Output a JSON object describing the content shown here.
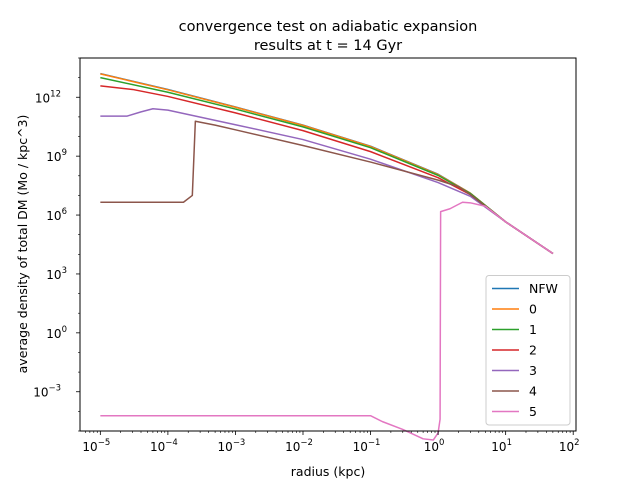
{
  "chart_data": {
    "type": "line",
    "title": "convergence test on adiabatic expansion",
    "subtitle": "results at t = 14 Gyr",
    "xlabel": "radius (kpc)",
    "ylabel": "average density of total DM (Mo / kpc^3)",
    "xscale": "log",
    "yscale": "log",
    "xlim": [
      5e-06,
      110
    ],
    "ylim": [
      1e-05,
      100000000000000.0
    ],
    "x_ticks": [
      {
        "value": 1e-05,
        "base": "10",
        "exp": "−5"
      },
      {
        "value": 0.0001,
        "base": "10",
        "exp": "−4"
      },
      {
        "value": 0.001,
        "base": "10",
        "exp": "−3"
      },
      {
        "value": 0.01,
        "base": "10",
        "exp": "−2"
      },
      {
        "value": 0.1,
        "base": "10",
        "exp": "−1"
      },
      {
        "value": 1,
        "base": "10",
        "exp": "0"
      },
      {
        "value": 10,
        "base": "10",
        "exp": "1"
      },
      {
        "value": 100,
        "base": "10",
        "exp": "2"
      }
    ],
    "y_ticks": [
      {
        "value": 0.001,
        "base": "10",
        "exp": "−3"
      },
      {
        "value": 1,
        "base": "10",
        "exp": "0"
      },
      {
        "value": 1000.0,
        "base": "10",
        "exp": "3"
      },
      {
        "value": 1000000.0,
        "base": "10",
        "exp": "6"
      },
      {
        "value": 1000000000.0,
        "base": "10",
        "exp": "9"
      },
      {
        "value": 1000000000000.0,
        "base": "10",
        "exp": "12"
      }
    ],
    "grid": false,
    "legend_position": "lower-right",
    "series": [
      {
        "name": "NFW",
        "color": "#1f77b4",
        "points": [
          [
            1e-05,
            16000000000000.0
          ],
          [
            0.0001,
            2500000000000.0
          ],
          [
            0.001,
            320000000000.0
          ],
          [
            0.01,
            38000000000.0
          ],
          [
            0.1,
            3200000000.0
          ],
          [
            1,
            120000000.0
          ],
          [
            3,
            13000000.0
          ],
          [
            10,
            450000.0
          ],
          [
            50,
            11000.0
          ]
        ]
      },
      {
        "name": "0",
        "color": "#ff7f0e",
        "points": [
          [
            1e-05,
            15500000000000.0
          ],
          [
            0.0001,
            2400000000000.0
          ],
          [
            0.001,
            310000000000.0
          ],
          [
            0.01,
            37000000000.0
          ],
          [
            0.1,
            3100000000.0
          ],
          [
            1,
            115000000.0
          ],
          [
            3,
            13000000.0
          ],
          [
            10,
            450000.0
          ],
          [
            50,
            11000.0
          ]
        ]
      },
      {
        "name": "1",
        "color": "#2ca02c",
        "points": [
          [
            1e-05,
            10000000000000.0
          ],
          [
            0.0001,
            1800000000000.0
          ],
          [
            0.001,
            250000000000.0
          ],
          [
            0.01,
            31000000000.0
          ],
          [
            0.1,
            2700000000.0
          ],
          [
            1,
            105000000.0
          ],
          [
            3,
            12500000.0
          ],
          [
            10,
            450000.0
          ],
          [
            50,
            11000.0
          ]
        ]
      },
      {
        "name": "2",
        "color": "#d62728",
        "points": [
          [
            1e-05,
            3800000000000.0
          ],
          [
            3e-05,
            2500000000000.0
          ],
          [
            0.0001,
            1100000000000.0
          ],
          [
            0.001,
            160000000000.0
          ],
          [
            0.01,
            20000000000.0
          ],
          [
            0.1,
            1700000000.0
          ],
          [
            1,
            80000000.0
          ],
          [
            3,
            11000000.0
          ],
          [
            10,
            450000.0
          ],
          [
            50,
            11000.0
          ]
        ]
      },
      {
        "name": "3",
        "color": "#9467bd",
        "points": [
          [
            1e-05,
            110000000000.0
          ],
          [
            2.5e-05,
            110000000000.0
          ],
          [
            4e-05,
            180000000000.0
          ],
          [
            6e-05,
            260000000000.0
          ],
          [
            0.0001,
            220000000000.0
          ],
          [
            0.001,
            40000000000.0
          ],
          [
            0.01,
            7000000000.0
          ],
          [
            0.1,
            700000000.0
          ],
          [
            1,
            45000000.0
          ],
          [
            3,
            9000000.0
          ],
          [
            10,
            450000.0
          ],
          [
            50,
            11000.0
          ]
        ]
      },
      {
        "name": "4",
        "color": "#8c564b",
        "points": [
          [
            1e-05,
            4500000.0
          ],
          [
            0.00017,
            4500000.0
          ],
          [
            0.00023,
            10000000.0
          ],
          [
            0.000255,
            60000000000.0
          ],
          [
            0.0005,
            38000000000.0
          ],
          [
            0.001,
            22000000000.0
          ],
          [
            0.01,
            3500000000.0
          ],
          [
            0.1,
            500000000.0
          ],
          [
            1,
            60000000.0
          ],
          [
            2,
            28000000.0
          ],
          [
            3,
            11000000.0
          ],
          [
            10,
            450000.0
          ],
          [
            50,
            11000.0
          ]
        ]
      },
      {
        "name": "5",
        "color": "#e377c2",
        "points": [
          [
            1e-05,
            6e-05
          ],
          [
            0.1,
            6e-05
          ],
          [
            0.15,
            3e-05
          ],
          [
            0.3,
            1.2e-05
          ],
          [
            0.6,
            4e-06
          ],
          [
            0.85,
            3.5e-06
          ],
          [
            1.0,
            8e-06
          ],
          [
            1.07,
            4e-05
          ],
          [
            1.09,
            1500000.0
          ],
          [
            1.5,
            2100000.0
          ],
          [
            1.9,
            3200000.0
          ],
          [
            2.3,
            4500000.0
          ],
          [
            3,
            4200000.0
          ],
          [
            5,
            2800000.0
          ],
          [
            10,
            450000.0
          ],
          [
            50,
            11000.0
          ]
        ]
      }
    ]
  }
}
